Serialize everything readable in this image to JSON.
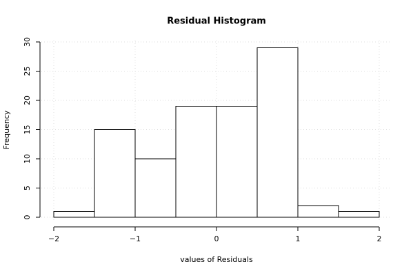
{
  "chart_data": {
    "type": "histogram",
    "title": "Residual Histogram",
    "x_label": "values of Residuals",
    "y_label": "Frequency",
    "bins": [
      -2,
      -1.5,
      -1,
      -0.5,
      0,
      0.5,
      1,
      1.5,
      2
    ],
    "counts": [
      1,
      15,
      10,
      19,
      19,
      29,
      2,
      1
    ],
    "color": "#ffffff",
    "edge_color": "#000000",
    "xlim": [
      -2,
      2
    ],
    "xticks": [
      {
        "value": -2,
        "label": "−2"
      },
      {
        "value": -1,
        "label": "−1"
      },
      0,
      1,
      2
    ],
    "ylim": [
      0,
      30
    ],
    "yticks": [
      0,
      5,
      10,
      15,
      20,
      25,
      30
    ],
    "grid": true
  }
}
